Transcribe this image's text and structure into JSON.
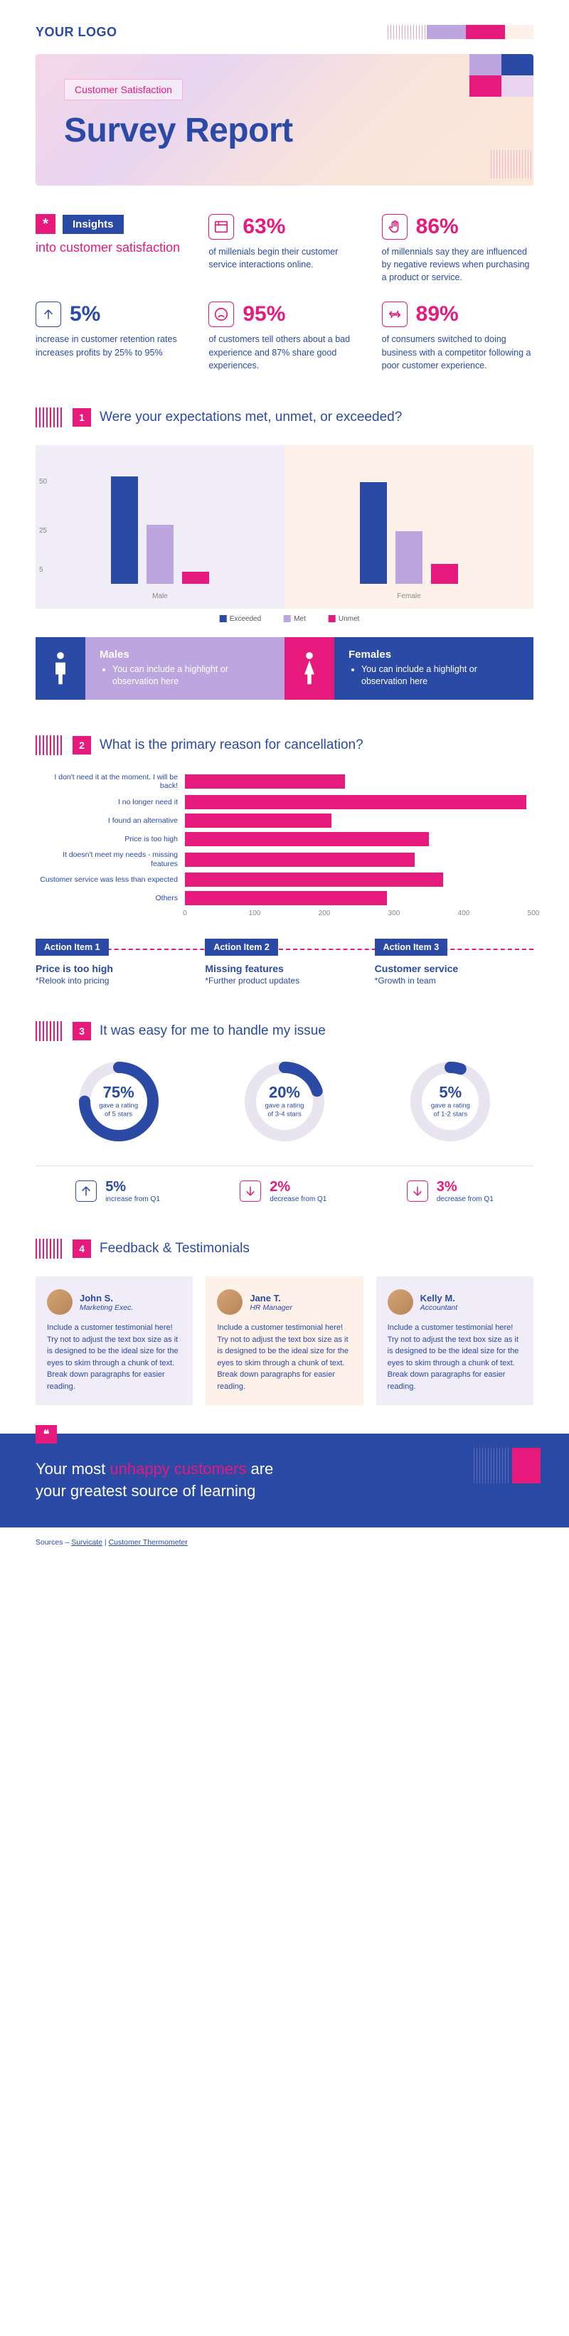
{
  "brand": {
    "logo": "YOUR LOGO"
  },
  "colors": {
    "primary": "#2a4aa5",
    "accent": "#e6197c",
    "lilac": "#bda5e0",
    "lavender_bg": "#f0ecf8",
    "peach_bg": "#fdf1ea"
  },
  "hero": {
    "tag": "Customer Satisfaction",
    "title": "Survey Report"
  },
  "insights": {
    "badge": "*",
    "label": "Insights",
    "subtitle": "into customer satisfaction",
    "stats": [
      {
        "icon": "browser",
        "color": "#e6197c",
        "value": "63%",
        "text": "of millenials begin their customer service interactions online."
      },
      {
        "icon": "hand",
        "color": "#e6197c",
        "value": "86%",
        "text": "of millennials say they are influenced by negative reviews when purchasing a product or service."
      },
      {
        "icon": "arrow-up",
        "color": "#2a4aa5",
        "value": "5%",
        "text": "increase in customer retention rates increases profits by 25% to 95%"
      },
      {
        "icon": "sad-face",
        "color": "#e6197c",
        "value": "95%",
        "text": "of customers tell others about a bad experience and 87% share good experiences."
      },
      {
        "icon": "switch",
        "color": "#e6197c",
        "value": "89%",
        "text": "of consumers switched to doing business with a competitor following a poor customer experience."
      }
    ]
  },
  "q1": {
    "num": "1",
    "text": "Were your expectations met, unmet, or exceeded?",
    "yticks": [
      5,
      25,
      50
    ],
    "yrange": [
      0,
      60
    ],
    "groups": [
      {
        "label": "Male",
        "bg": "#f0ecf8",
        "bars": [
          {
            "v": 55,
            "c": "#2a4aa5"
          },
          {
            "v": 30,
            "c": "#bda5e0"
          },
          {
            "v": 6,
            "c": "#e6197c"
          }
        ]
      },
      {
        "label": "Female",
        "bg": "#fdf1ea",
        "bars": [
          {
            "v": 52,
            "c": "#2a4aa5"
          },
          {
            "v": 27,
            "c": "#bda5e0"
          },
          {
            "v": 10,
            "c": "#e6197c"
          }
        ]
      }
    ],
    "legend": [
      {
        "l": "Exceeded",
        "c": "#2a4aa5"
      },
      {
        "l": "Met",
        "c": "#bda5e0"
      },
      {
        "l": "Unmet",
        "c": "#e6197c"
      }
    ],
    "callouts": [
      {
        "title": "Males",
        "text": "You can include a highlight or observation here",
        "icon_bg": "#2a4aa5",
        "body_bg": "#bda5e0"
      },
      {
        "title": "Females",
        "text": "You can include a highlight or observation here",
        "icon_bg": "#e6197c",
        "body_bg": "#2a4aa5"
      }
    ]
  },
  "q2": {
    "num": "2",
    "text": "What is the primary reason for cancellation?",
    "xmax": 500,
    "xtick_step": 100,
    "xticks": [
      "0",
      "100",
      "200",
      "300",
      "400",
      "500"
    ],
    "bars": [
      {
        "label": "I don't need it at the moment. I will be back!",
        "value": 230
      },
      {
        "label": "I no longer need it",
        "value": 490
      },
      {
        "label": "I found an alternative",
        "value": 210
      },
      {
        "label": "Price is too high",
        "value": 350
      },
      {
        "label": "It doesn't meet my needs - missing features",
        "value": 330
      },
      {
        "label": "Customer service was less than expected",
        "value": 370
      },
      {
        "label": "Others",
        "value": 290
      }
    ],
    "actions": [
      {
        "tag": "Action Item 1",
        "title": "Price is too high",
        "desc": "*Relook into pricing"
      },
      {
        "tag": "Action Item 2",
        "title": "Missing features",
        "desc": "*Further product updates"
      },
      {
        "tag": "Action Item 3",
        "title": "Customer service",
        "desc": "*Growth in team"
      }
    ]
  },
  "q3": {
    "num": "3",
    "text": "It was easy for me to handle my issue",
    "donuts": [
      {
        "pct": 75,
        "label1": "gave a rating",
        "label2": "of 5 stars"
      },
      {
        "pct": 20,
        "label1": "gave a rating",
        "label2": "of 3-4 stars"
      },
      {
        "pct": 5,
        "label1": "gave a rating",
        "label2": "of 1-2 stars"
      }
    ],
    "donut_ring_color": "#2a4aa5",
    "donut_track_color": "#e8e5f0",
    "donut_stroke_width": 16,
    "deltas": [
      {
        "dir": "up",
        "value": "5%",
        "text": "increase from Q1",
        "color": "#2a4aa5"
      },
      {
        "dir": "down",
        "value": "2%",
        "text": "decrease from Q1",
        "color": "#e6197c"
      },
      {
        "dir": "down",
        "value": "3%",
        "text": "decrease from Q1",
        "color": "#e6197c"
      }
    ]
  },
  "q4": {
    "num": "4",
    "text": "Feedback & Testimonials",
    "items": [
      {
        "name": "John S.",
        "role": "Marketing Exec.",
        "body": "Include a customer testimonial here! Try not to adjust the text box size as it is designed to be the ideal size for the eyes to skim through a chunk of text. Break down paragraphs for easier reading."
      },
      {
        "name": "Jane T.",
        "role": "HR Manager",
        "body": "Include a customer testimonial here! Try not to adjust the text box size as it is designed to be the ideal size for the eyes to skim through a chunk of text. Break down paragraphs for easier reading."
      },
      {
        "name": "Kelly M.",
        "role": "Accountant",
        "body": "Include a customer testimonial here! Try not to adjust the text box size as it is designed to be the ideal size for the eyes to skim through a chunk of text. Break down paragraphs for easier reading."
      }
    ]
  },
  "quote": {
    "line1_a": "Your most ",
    "line1_b": "unhappy customers",
    "line1_c": " are",
    "line2": "your greatest source of learning"
  },
  "sources": {
    "prefix": "Sources – ",
    "s1": "Survicate",
    "sep": "  |  ",
    "s2": "Customer Thermometer"
  }
}
